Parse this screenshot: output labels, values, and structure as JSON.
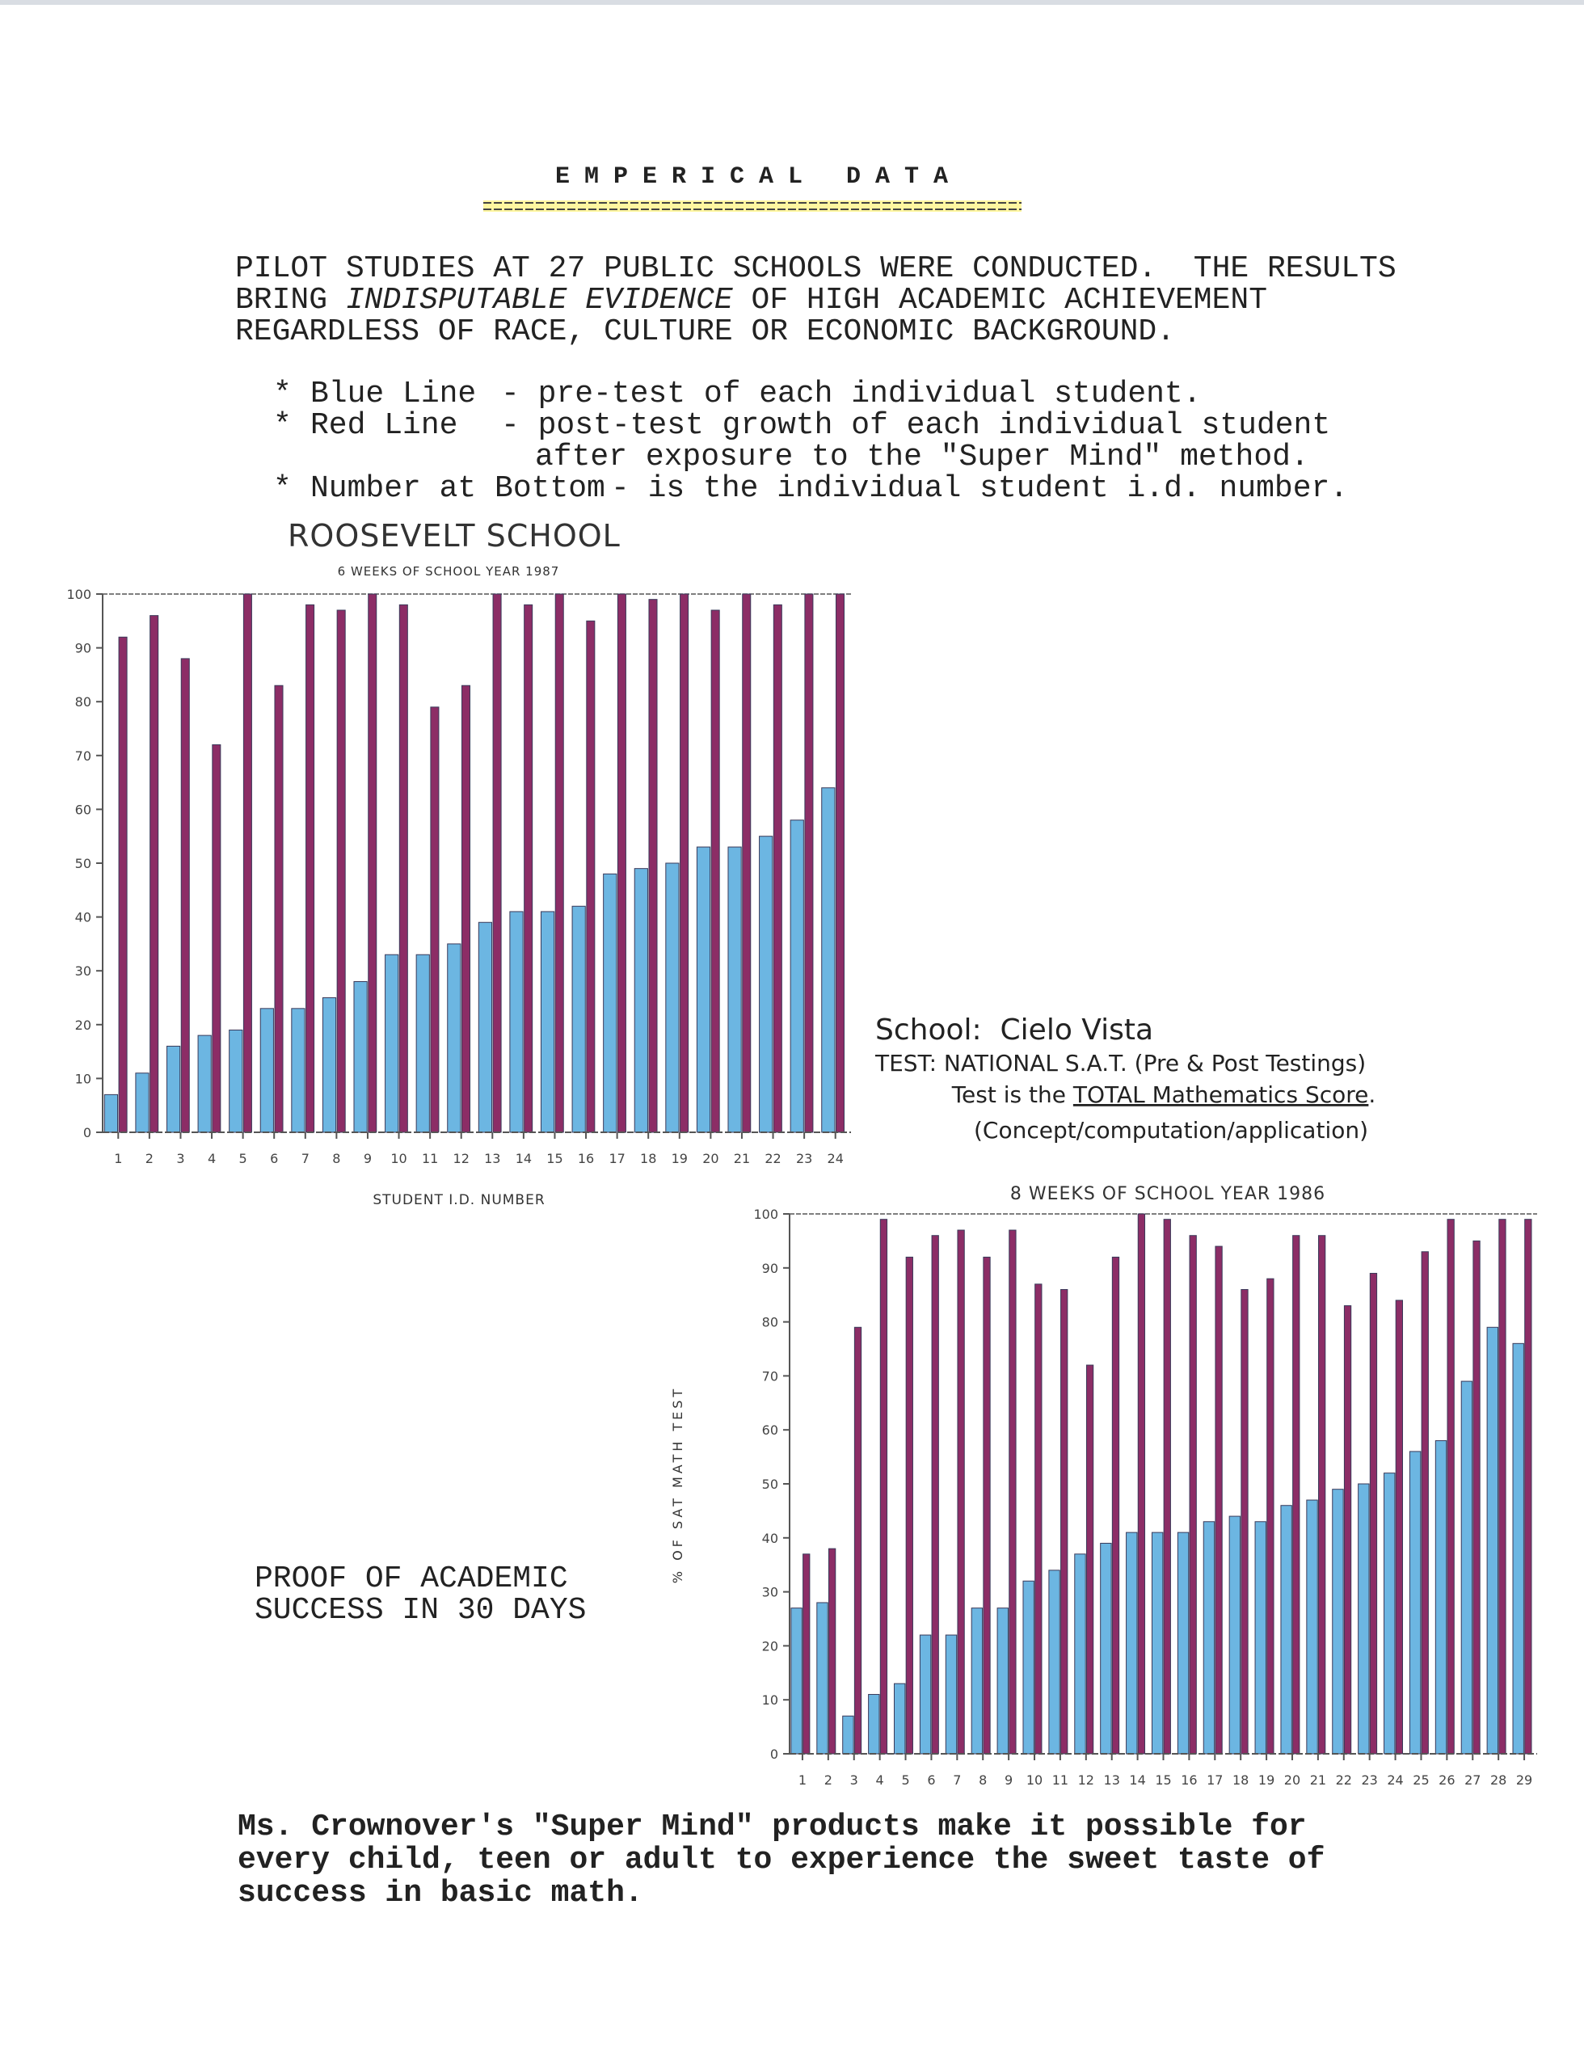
{
  "header": {
    "title": "E M P E R I C A L   D A T A"
  },
  "intro": {
    "line1": "PILOT STUDIES AT 27 PUBLIC SCHOOLS WERE CONDUCTED.  THE RESULTS",
    "line2_start": "BRING ",
    "line2_emphasis": "INDISPUTABLE EVIDENCE",
    "line2_end": " OF HIGH ACADEMIC ACHIEVEMENT",
    "line3": "REGARDLESS OF RACE, CULTURE OR ECONOMIC BACKGROUND."
  },
  "bullets": [
    {
      "marker": "*",
      "label": "Blue Line",
      "text": [
        "- pre-test of each individual student."
      ]
    },
    {
      "marker": "*",
      "label": "Red Line",
      "text": [
        "- post-test growth of each individual student",
        "after exposure to the \"Super Mind\" method."
      ]
    },
    {
      "marker": "*",
      "label": "Number at Bottom",
      "text": [
        "- is the individual student i.d. number."
      ]
    }
  ],
  "cielo_vista": {
    "school": "School:  Cielo Vista",
    "test": "TEST: NATIONAL S.A.T. (Pre & Post Testings)",
    "score_start": "Test is the ",
    "score_underlined": "TOTAL Mathematics Score",
    "score_end": ".",
    "scope": "(Concept/computation/application)"
  },
  "proof": [
    "PROOF OF ACADEMIC",
    "SUCCESS IN 30 DAYS"
  ],
  "footer": [
    "Ms. Crownover's \"Super Mind\" products make it possible for",
    "every child, teen or adult to experience the sweet taste of",
    "success in basic math."
  ],
  "chart_data": [
    {
      "type": "bar",
      "title": "ROOSEVELT SCHOOL",
      "subtitle": "6 WEEKS OF SCHOOL YEAR 1987",
      "x_label": "STUDENT I.D. NUMBER",
      "categories": [
        1,
        2,
        3,
        4,
        5,
        6,
        7,
        8,
        9,
        10,
        11,
        12,
        13,
        14,
        15,
        16,
        17,
        18,
        19,
        20,
        21,
        22,
        23,
        24
      ],
      "series": [
        {
          "color": "#6cb6e2",
          "values": [
            7,
            11,
            16,
            18,
            19,
            23,
            23,
            25,
            28,
            33,
            33,
            35,
            39,
            41,
            41,
            42,
            48,
            49,
            50,
            53,
            53,
            55,
            58,
            64
          ]
        },
        {
          "color": "#8c2d66",
          "values": [
            92,
            96,
            88,
            72,
            100,
            83,
            98,
            97,
            100,
            98,
            79,
            83,
            100,
            98,
            100,
            95,
            100,
            99,
            100,
            97,
            100,
            98,
            100,
            100
          ]
        }
      ],
      "ylim": [
        0,
        100
      ],
      "yticks": [
        0,
        10,
        20,
        30,
        40,
        50,
        60,
        70,
        80,
        90,
        100
      ]
    },
    {
      "type": "bar",
      "title": "8 WEEKS OF SCHOOL YEAR 1986",
      "y_label": "% OF SAT MATH TEST",
      "categories": [
        1,
        2,
        3,
        4,
        5,
        6,
        7,
        8,
        9,
        10,
        11,
        12,
        13,
        14,
        15,
        16,
        17,
        18,
        19,
        20,
        21,
        22,
        23,
        24,
        25,
        26,
        27,
        28,
        29
      ],
      "series": [
        {
          "color": "#6cb6e2",
          "values": [
            27,
            28,
            7,
            11,
            13,
            22,
            22,
            27,
            27,
            32,
            34,
            37,
            39,
            41,
            41,
            41,
            43,
            44,
            43,
            46,
            47,
            49,
            50,
            52,
            56,
            58,
            69,
            79,
            76
          ]
        },
        {
          "color": "#8c2d66",
          "values": [
            37,
            38,
            79,
            99,
            92,
            96,
            97,
            92,
            97,
            87,
            86,
            72,
            92,
            100,
            99,
            96,
            94,
            86,
            88,
            96,
            96,
            83,
            89,
            84,
            93,
            99,
            95,
            99,
            99
          ]
        }
      ],
      "ylim": [
        0,
        100
      ],
      "yticks": [
        0,
        10,
        20,
        30,
        40,
        50,
        60,
        70,
        80,
        90,
        100
      ]
    }
  ]
}
